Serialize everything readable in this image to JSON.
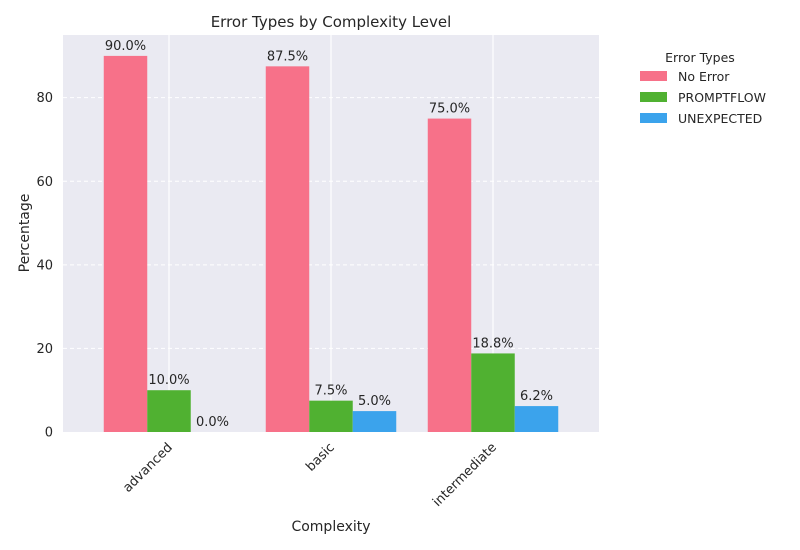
{
  "chart_data": {
    "type": "bar",
    "title": "Error Types by Complexity Level",
    "xlabel": "Complexity",
    "ylabel": "Percentage",
    "categories": [
      "advanced",
      "basic",
      "intermediate"
    ],
    "series": [
      {
        "name": "No Error",
        "color": "#f77189",
        "values": [
          90.0,
          87.5,
          75.0
        ],
        "labels": [
          "90.0%",
          "87.5%",
          "75.0%"
        ]
      },
      {
        "name": "PROMPTFLOW",
        "color": "#50b131",
        "values": [
          10.0,
          7.5,
          18.8
        ],
        "labels": [
          "10.0%",
          "7.5%",
          "18.8%"
        ]
      },
      {
        "name": "UNEXPECTED",
        "color": "#3ba3ec",
        "values": [
          0.0,
          5.0,
          6.2
        ],
        "labels": [
          "0.0%",
          "5.0%",
          "6.2%"
        ]
      }
    ],
    "ylim": [
      0,
      95
    ],
    "yticks": [
      0,
      20,
      40,
      60,
      80
    ],
    "legend_title": "Error Types",
    "legend_position": "outside-right",
    "grid": true
  }
}
